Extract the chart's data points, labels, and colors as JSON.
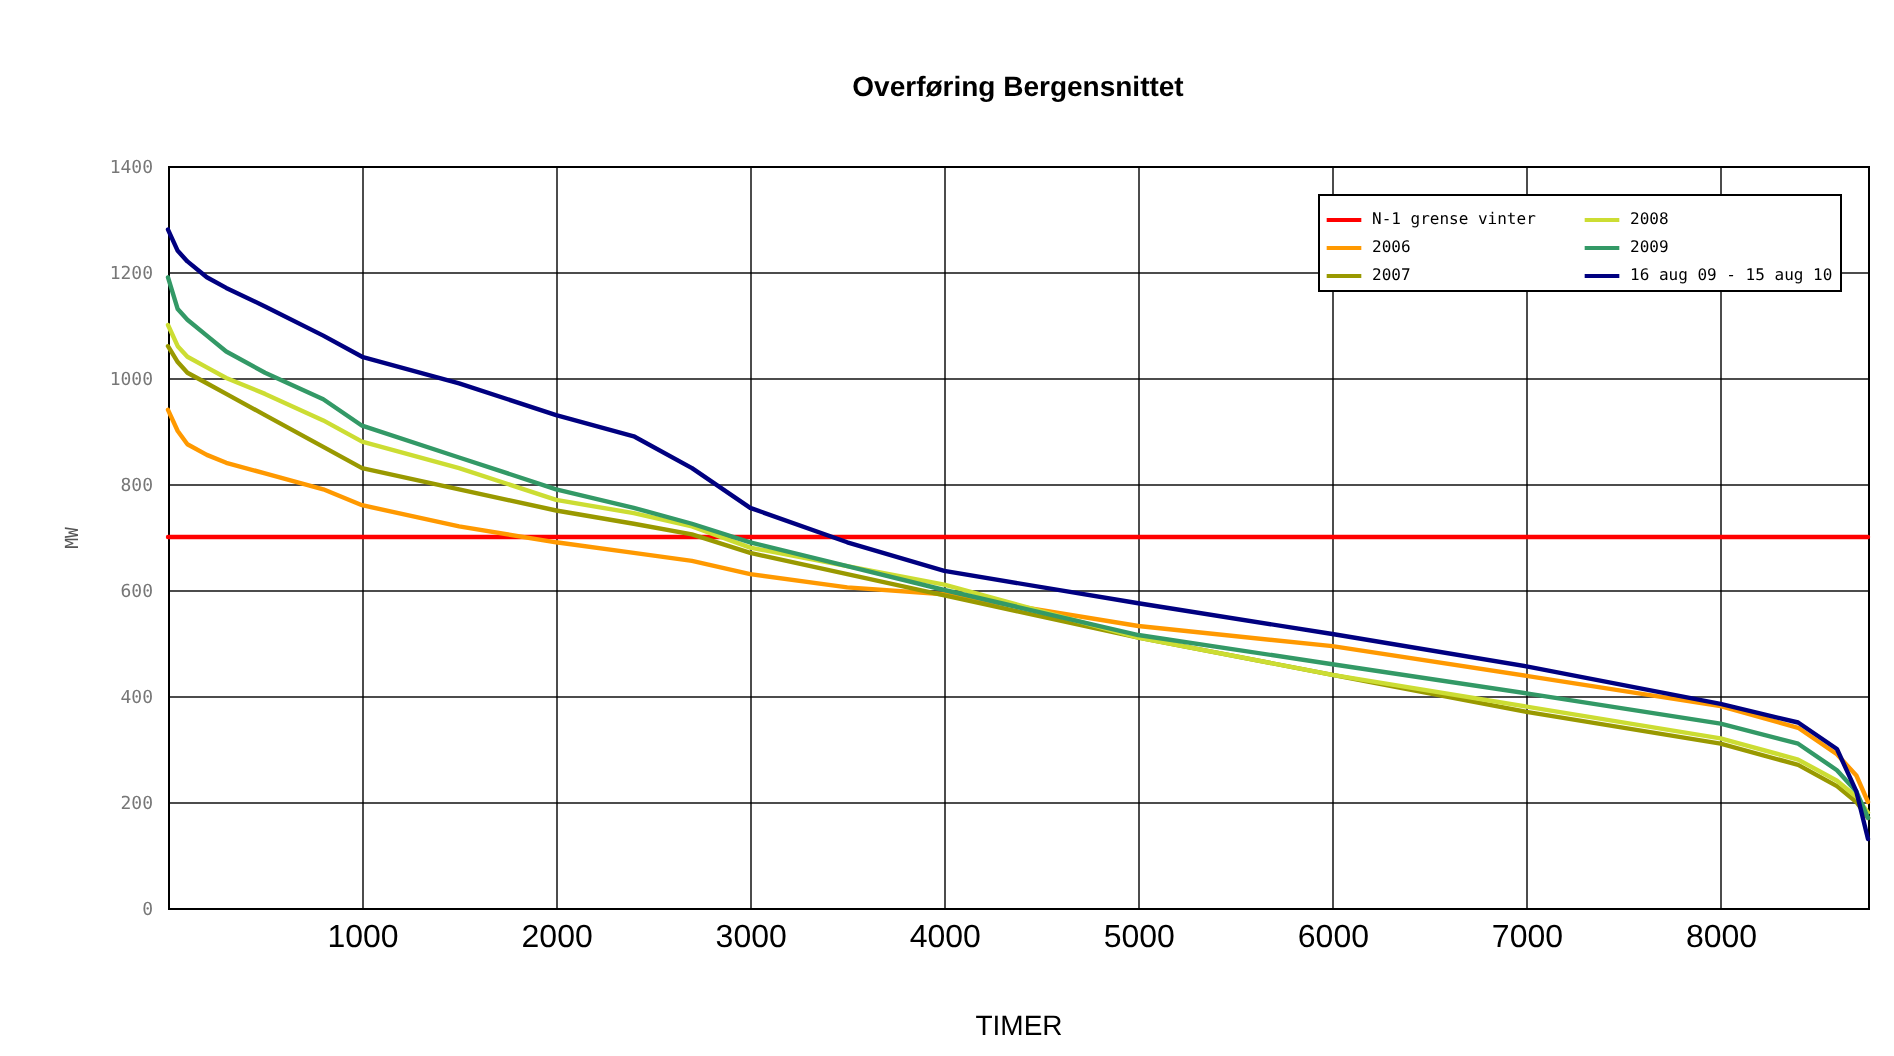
{
  "chart_data": {
    "type": "line",
    "title": "Overføring Bergensnittet",
    "xlabel": "TIMER",
    "ylabel": "MW",
    "x": [
      0,
      50,
      100,
      200,
      300,
      500,
      800,
      1000,
      1500,
      2000,
      2400,
      2700,
      3000,
      3500,
      4000,
      5000,
      6000,
      7000,
      8000,
      8400,
      8600,
      8700,
      8760
    ],
    "xlim": [
      0,
      8760
    ],
    "xticks": [
      1000,
      2000,
      3000,
      4000,
      5000,
      6000,
      7000,
      8000
    ],
    "ylim": [
      0,
      1400
    ],
    "yticks": [
      0,
      200,
      400,
      600,
      800,
      1000,
      1200,
      1400
    ],
    "grid": true,
    "legend": "top right",
    "series": [
      {
        "name": "N-1 grense vinter",
        "color": "#ff0000",
        "x": [
          0,
          8760
        ],
        "values": [
          700,
          700
        ]
      },
      {
        "name": "2006",
        "color": "#ff9900",
        "values": [
          940,
          900,
          875,
          855,
          840,
          820,
          790,
          760,
          720,
          690,
          670,
          655,
          630,
          605,
          592,
          532,
          494,
          438,
          381,
          340,
          290,
          250,
          200
        ]
      },
      {
        "name": "2007",
        "color": "#999900",
        "values": [
          1060,
          1030,
          1010,
          990,
          970,
          930,
          870,
          830,
          790,
          750,
          725,
          705,
          670,
          630,
          590,
          510,
          440,
          370,
          310,
          270,
          230,
          200,
          170
        ]
      },
      {
        "name": "2008",
        "color": "#ccdd33",
        "values": [
          1100,
          1060,
          1040,
          1020,
          1000,
          970,
          920,
          880,
          830,
          770,
          745,
          720,
          680,
          645,
          610,
          510,
          440,
          380,
          320,
          280,
          240,
          210,
          180
        ]
      },
      {
        "name": "2009",
        "color": "#339966",
        "values": [
          1190,
          1130,
          1110,
          1080,
          1050,
          1010,
          960,
          910,
          850,
          790,
          755,
          725,
          690,
          645,
          600,
          515,
          460,
          405,
          348,
          310,
          260,
          220,
          170
        ]
      },
      {
        "name": "16 aug 09 - 15 aug 10",
        "color": "#000080",
        "values": [
          1280,
          1240,
          1220,
          1190,
          1170,
          1135,
          1080,
          1040,
          990,
          930,
          890,
          830,
          755,
          690,
          636,
          575,
          517,
          456,
          385,
          350,
          300,
          220,
          130
        ]
      }
    ]
  }
}
